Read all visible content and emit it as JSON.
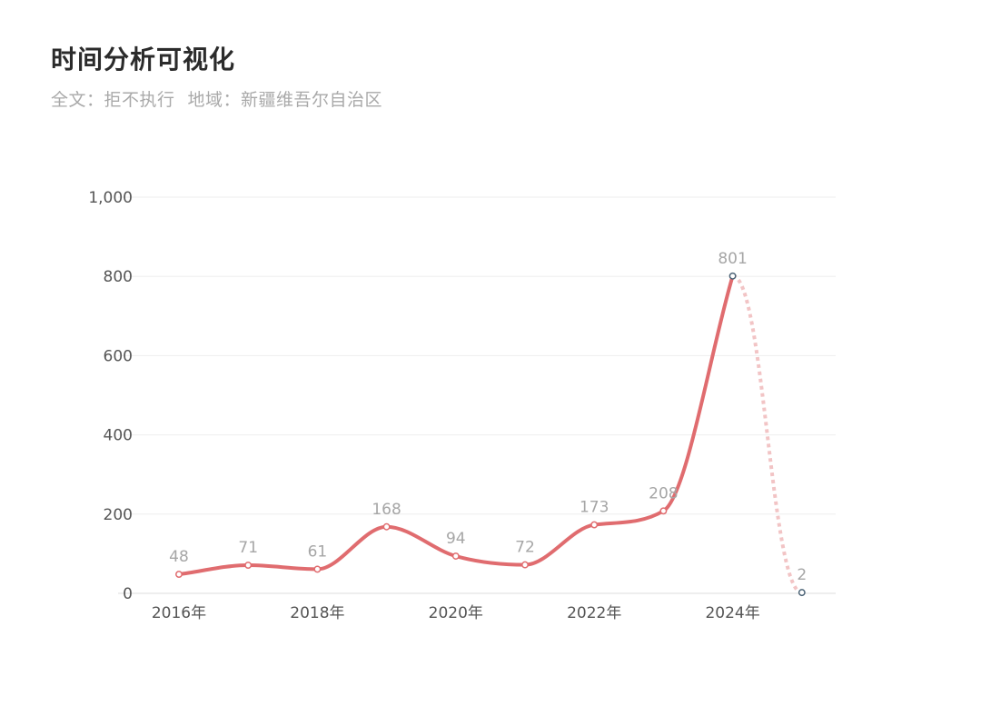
{
  "header": {
    "title": "时间分析可视化",
    "filter_fulltext": "全文：拒不执行",
    "filter_region": "地域：新疆维吾尔自治区"
  },
  "chart_data": {
    "type": "line",
    "title": "时间分析可视化",
    "x": [
      "2016年",
      "2017年",
      "2018年",
      "2019年",
      "2020年",
      "2021年",
      "2022年",
      "2023年",
      "2024年",
      "2025年"
    ],
    "x_tick_labels": [
      "2016年",
      "2018年",
      "2020年",
      "2022年",
      "2024年"
    ],
    "series": [
      {
        "values": [
          48,
          71,
          61,
          168,
          94,
          72,
          173,
          208,
          801,
          2
        ]
      }
    ],
    "data_labels": [
      "48",
      "71",
      "61",
      "168",
      "94",
      "72",
      "173",
      "208",
      "801",
      "2"
    ],
    "y_tick_labels": [
      "0",
      "200",
      "400",
      "600",
      "800",
      "1,000"
    ],
    "y_ticks": [
      0,
      200,
      400,
      600,
      800,
      1000
    ],
    "ylim": [
      0,
      1000
    ],
    "xlabel": "",
    "ylabel": "",
    "grid": true,
    "dashed_last_segment": true,
    "colors": {
      "line": "#e06c6f",
      "dashed": "#f2c4c5",
      "last_marker": "#4a6275",
      "grid": "#eeeeee"
    }
  }
}
